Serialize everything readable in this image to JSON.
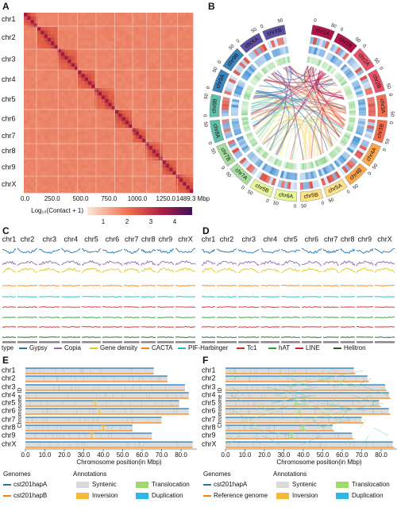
{
  "panels": {
    "a": {
      "label": "A",
      "rows": [
        "chr1",
        "chr2",
        "chr3",
        "chr4",
        "chr5",
        "chr6",
        "chr7",
        "chr8",
        "chr9",
        "chrX"
      ],
      "xticks": [
        "0.0",
        "250.0",
        "500.0",
        "750.0",
        "1000.0",
        "1250.0",
        "1489.3 Mbp"
      ],
      "colorbar_title": "Log₁₀(Contact + 1)",
      "colorbar_ticks": [
        "1",
        "2",
        "3",
        "4"
      ]
    },
    "b": {
      "label": "B",
      "chromosomes": [
        "chr1A",
        "chr1B",
        "chr2A",
        "chr2B",
        "chr3A",
        "chr3B",
        "chr4A",
        "chr4B",
        "chr5A",
        "chr5B",
        "chr6A",
        "chr6B",
        "chr7A",
        "chr7B",
        "chr8A",
        "chr8B",
        "chr9A",
        "chr9B",
        "chrXA",
        "chrXB"
      ],
      "colors": [
        "#b0154a",
        "#b0154a",
        "#e8516a",
        "#e8516a",
        "#f26d4f",
        "#f26d4f",
        "#f9a64d",
        "#f9a64d",
        "#fce08a",
        "#fce08a",
        "#e9f59a",
        "#e9f59a",
        "#a6db9f",
        "#a6db9f",
        "#5fbfa8",
        "#5fbfa8",
        "#3a83bb",
        "#3a83bb",
        "#5e4fa2",
        "#5e4fa2"
      ],
      "scale_labels": [
        "0",
        "50"
      ]
    },
    "c": {
      "label": "C",
      "columns": [
        "chr1",
        "chr2",
        "chr3",
        "chr4",
        "chr5",
        "chr6",
        "chr7",
        "chr8",
        "chr9",
        "chrX"
      ]
    },
    "d": {
      "label": "D",
      "columns": [
        "chr1",
        "chr2",
        "chr3",
        "chr4",
        "chr5",
        "chr6",
        "chr7",
        "chr8",
        "chr9",
        "chrX"
      ]
    },
    "legend_cd": {
      "title": "type",
      "items": [
        {
          "name": "Gypsy",
          "color": "#1f77b4"
        },
        {
          "name": "Copia",
          "color": "#9467bd"
        },
        {
          "name": "Gene density",
          "color": "#e6c619"
        },
        {
          "name": "CACTA",
          "color": "#ff7f0e"
        },
        {
          "name": "PIF-Harbinger",
          "color": "#17becf"
        },
        {
          "name": "Tc1",
          "color": "#d62728"
        },
        {
          "name": "hAT",
          "color": "#2ca02c"
        },
        {
          "name": "LINE",
          "color": "#c62828"
        },
        {
          "name": "Helitron",
          "color": "#1b5e20"
        }
      ]
    },
    "e": {
      "label": "E",
      "rows": [
        "chr1",
        "chr2",
        "chr3",
        "chr4",
        "chr5",
        "chr6",
        "chr7",
        "chr8",
        "chr9",
        "chrX"
      ],
      "y_title": "Chromosome ID",
      "xticks": [
        "0.0",
        "10.0",
        "20.0",
        "30.0",
        "40.0",
        "50.0",
        "60.0",
        "70.0",
        "80.0"
      ],
      "x_title": "Chromosome position(in Mbp)",
      "genomes_title": "Genomes",
      "genomes": [
        {
          "name": "cst201hapA",
          "color": "#1f77b4"
        },
        {
          "name": "cst201hapB",
          "color": "#ff7f0e"
        }
      ],
      "annotations_title": "Annotations",
      "annotations": [
        {
          "name": "Syntenic",
          "color": "#d9d9d9"
        },
        {
          "name": "Translocation",
          "color": "#9fd86b"
        },
        {
          "name": "Inversion",
          "color": "#f5b93a"
        },
        {
          "name": "Duplication",
          "color": "#2bb8e8"
        }
      ]
    },
    "f": {
      "label": "F",
      "rows": [
        "chr1",
        "chr2",
        "chr3",
        "chr4",
        "chr5",
        "chr6",
        "chr7",
        "chr8",
        "chr9",
        "chrX"
      ],
      "y_title": "Chromosome ID",
      "xticks": [
        "0.0",
        "10.0",
        "20.0",
        "30.0",
        "40.0",
        "50.0",
        "60.0",
        "70.0",
        "80.0"
      ],
      "x_title": "Chromosome position(in Mbp)",
      "genomes_title": "Genomes",
      "genomes": [
        {
          "name": "cst201hapA",
          "color": "#1f77b4"
        },
        {
          "name": "Reference genome",
          "color": "#ff7f0e"
        }
      ],
      "annotations_title": "Annotations",
      "annotations": [
        {
          "name": "Syntenic",
          "color": "#d9d9d9"
        },
        {
          "name": "Translocation",
          "color": "#9fd86b"
        },
        {
          "name": "Inversion",
          "color": "#f5b93a"
        },
        {
          "name": "Duplication",
          "color": "#2bb8e8"
        }
      ]
    }
  }
}
